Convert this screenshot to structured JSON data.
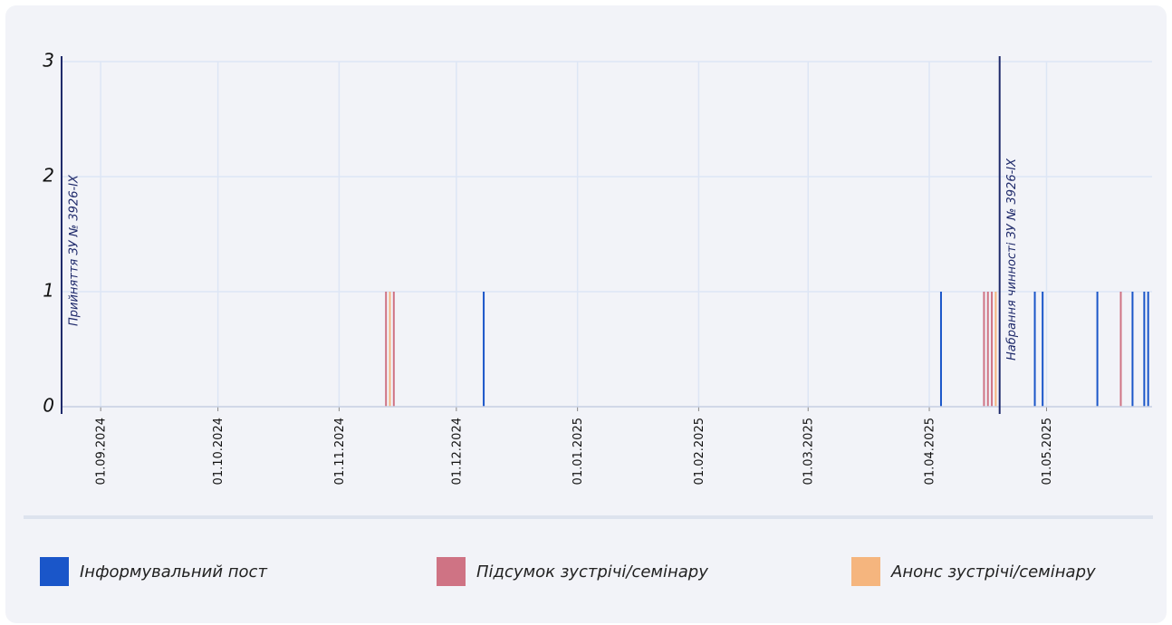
{
  "chart_data": {
    "type": "bar",
    "xlim": [
      "22.08.2024",
      "28.05.2025"
    ],
    "xticks": [
      "01.09.2024",
      "01.10.2024",
      "01.11.2024",
      "01.12.2024",
      "01.01.2025",
      "01.02.2025",
      "01.03.2025",
      "01.04.2025",
      "01.05.2025"
    ],
    "ylim": [
      0,
      3
    ],
    "yticks": [
      0,
      1,
      2,
      3
    ],
    "grid": true,
    "legend": "bottom",
    "annotations": [
      {
        "x": "22.08.2024",
        "text": "Прийняття ЗУ № 3926-IX"
      },
      {
        "x": "19.04.2025",
        "text": "Набрання чинності ЗУ № 3926-IX"
      }
    ],
    "series": [
      {
        "name": "Інформувальний пост",
        "color": "#1a56c9",
        "x": [
          "08.12.2024",
          "04.04.2025",
          "28.04.2025",
          "30.04.2025",
          "14.05.2025",
          "23.05.2025",
          "26.05.2025",
          "27.05.2025"
        ],
        "values": [
          1,
          1,
          1,
          1,
          1,
          1,
          1,
          1
        ]
      },
      {
        "name": "Підсумок зустрічі/семінару",
        "color": "#cf7384",
        "x": [
          "13.11.2024",
          "15.11.2024",
          "15.04.2025",
          "16.04.2025",
          "17.04.2025",
          "20.05.2025"
        ],
        "values": [
          1,
          1,
          1,
          1,
          1,
          1
        ]
      },
      {
        "name": "Анонс зустрічі/семінару",
        "color": "#f5b57e",
        "x": [
          "14.11.2024",
          "18.04.2025"
        ],
        "values": [
          1,
          1
        ]
      }
    ]
  }
}
